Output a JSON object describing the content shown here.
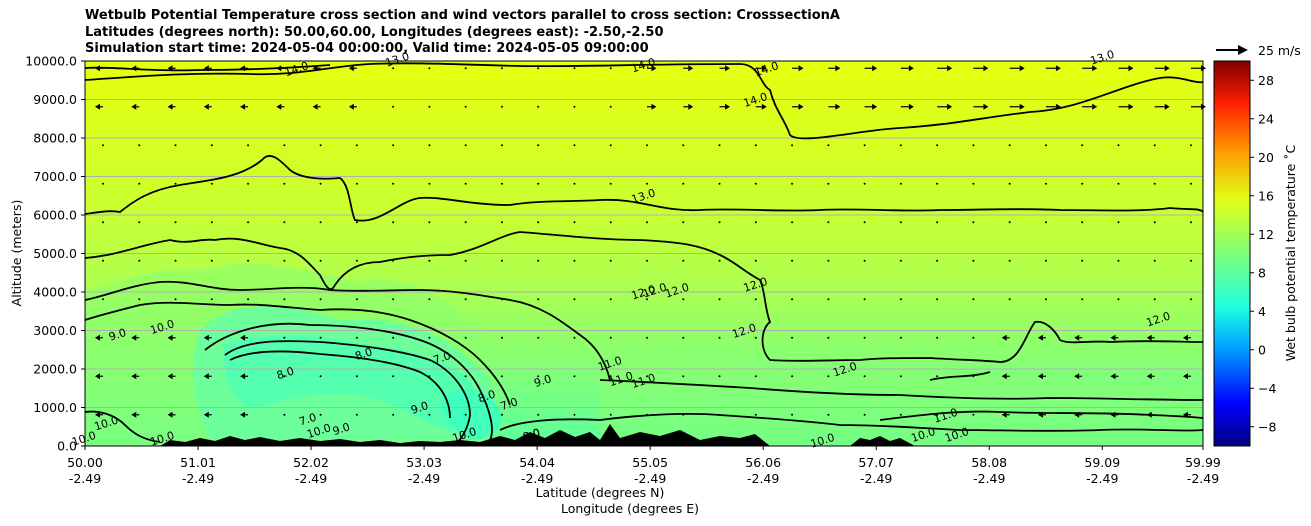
{
  "chart_data": {
    "type": "heatmap",
    "title_lines": [
      "Wetbulb Potential Temperature cross section and wind vectors parallel to cross section: CrosssectionA",
      "Latitudes (degrees north): 50.00,60.00, Longitudes (degrees east): -2.50,-2.50",
      "Simulation start time: 2024-05-04 00:00:00, Valid time: 2024-05-05 09:00:00"
    ],
    "ylabel": "Altitude (meters)",
    "xlabel_lines": [
      "Latitude (degrees N)",
      "Longitude (degrees E)"
    ],
    "ylim": [
      0,
      10000
    ],
    "yticks": [
      "0.0",
      "1000.0",
      "2000.0",
      "3000.0",
      "4000.0",
      "5000.0",
      "6000.0",
      "7000.0",
      "8000.0",
      "9000.0",
      "10000.0"
    ],
    "xticks": [
      {
        "lat": "50.00",
        "lon": "-2.49"
      },
      {
        "lat": "51.01",
        "lon": "-2.49"
      },
      {
        "lat": "52.02",
        "lon": "-2.49"
      },
      {
        "lat": "53.03",
        "lon": "-2.49"
      },
      {
        "lat": "54.04",
        "lon": "-2.49"
      },
      {
        "lat": "55.05",
        "lon": "-2.49"
      },
      {
        "lat": "56.06",
        "lon": "-2.49"
      },
      {
        "lat": "57.07",
        "lon": "-2.49"
      },
      {
        "lat": "58.08",
        "lon": "-2.49"
      },
      {
        "lat": "59.09",
        "lon": "-2.49"
      },
      {
        "lat": "59.99",
        "lon": "-2.49"
      }
    ],
    "grid": "horizontal",
    "colorbar": {
      "label": "Wet bulb potential temperature $^\\circ$C",
      "label_text": "Wet bulb potential temperature ˚C",
      "range": [
        -10,
        30
      ],
      "ticks": [
        "−8",
        "−4",
        "0",
        "4",
        "8",
        "12",
        "16",
        "20",
        "24",
        "28"
      ],
      "colormap": "jet"
    },
    "quiver_key": {
      "label": "25 m/s",
      "value": 25
    },
    "contour_levels": [
      "9.0",
      "10.0",
      "11.0",
      "12.0",
      "13.0",
      "14.0"
    ],
    "contour_labels": [
      {
        "text": "14.0",
        "x": 51.9,
        "y": 9700
      },
      {
        "text": "13.0",
        "x": 52.8,
        "y": 9950
      },
      {
        "text": "14.0",
        "x": 55.0,
        "y": 9800
      },
      {
        "text": "14.0",
        "x": 56.1,
        "y": 9700
      },
      {
        "text": "14.0",
        "x": 56.0,
        "y": 8900
      },
      {
        "text": "13.0",
        "x": 59.1,
        "y": 10000
      },
      {
        "text": "13.0",
        "x": 55.0,
        "y": 6400
      },
      {
        "text": "12.0",
        "x": 55.0,
        "y": 3900
      },
      {
        "text": "12.0",
        "x": 55.1,
        "y": 3950
      },
      {
        "text": "12.0",
        "x": 55.3,
        "y": 3950
      },
      {
        "text": "12.0",
        "x": 56.0,
        "y": 4100
      },
      {
        "text": "12.0",
        "x": 55.9,
        "y": 2900
      },
      {
        "text": "12.0",
        "x": 56.8,
        "y": 1900
      },
      {
        "text": "12.0",
        "x": 59.6,
        "y": 3200
      },
      {
        "text": "11.0",
        "x": 54.7,
        "y": 2050
      },
      {
        "text": "11.0",
        "x": 54.8,
        "y": 1650
      },
      {
        "text": "11.0",
        "x": 55.0,
        "y": 1600
      },
      {
        "text": "11.0",
        "x": 57.7,
        "y": 700
      },
      {
        "text": "10.0",
        "x": 50.7,
        "y": 3000
      },
      {
        "text": "10.0",
        "x": 50.0,
        "y": 100
      },
      {
        "text": "10.0",
        "x": 50.2,
        "y": 500
      },
      {
        "text": "10.0",
        "x": 50.7,
        "y": 100
      },
      {
        "text": "10.0",
        "x": 52.1,
        "y": 300
      },
      {
        "text": "10.0",
        "x": 53.4,
        "y": 200
      },
      {
        "text": "10.0",
        "x": 56.6,
        "y": 50
      },
      {
        "text": "10.0",
        "x": 57.5,
        "y": 200
      },
      {
        "text": "10.0",
        "x": 57.8,
        "y": 200
      },
      {
        "text": "9.0",
        "x": 50.3,
        "y": 2800
      },
      {
        "text": "9.0",
        "x": 52.3,
        "y": 350
      },
      {
        "text": "9.0",
        "x": 53.0,
        "y": 900
      },
      {
        "text": "9.0",
        "x": 54.1,
        "y": 1600
      },
      {
        "text": "8.0",
        "x": 51.8,
        "y": 1800
      },
      {
        "text": "8.0",
        "x": 52.5,
        "y": 2300
      },
      {
        "text": "8.0",
        "x": 53.6,
        "y": 1200
      },
      {
        "text": "8.0",
        "x": 54.0,
        "y": 200
      },
      {
        "text": "8.0",
        "x": 54.0,
        "y": 200
      },
      {
        "text": "7.0",
        "x": 53.2,
        "y": 2200
      },
      {
        "text": "7.0",
        "x": 53.8,
        "y": 1000
      },
      {
        "text": "7.0",
        "x": 52.0,
        "y": 600
      }
    ]
  }
}
